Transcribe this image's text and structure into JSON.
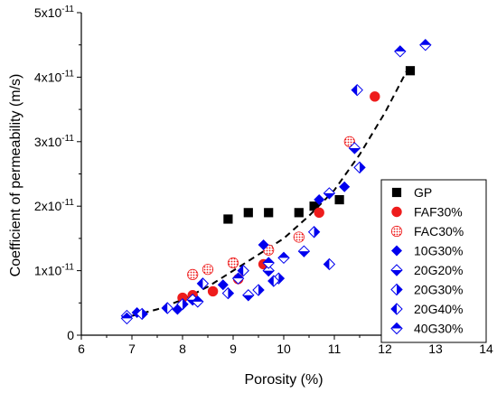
{
  "chart_data": {
    "type": "scatter",
    "xlabel": "Porosity (%)",
    "ylabel": "Coefficient of permeability (m/s)",
    "xlim": [
      6,
      14
    ],
    "ylim": [
      0,
      5e-11
    ],
    "x_ticks": [
      6,
      7,
      8,
      9,
      10,
      11,
      12,
      13,
      14
    ],
    "x_tick_labels": [
      "6",
      "7",
      "8",
      "9",
      "10",
      "11",
      "12",
      "13",
      "14"
    ],
    "y_ticks": [
      0,
      1e-11,
      2e-11,
      3e-11,
      4e-11,
      5e-11
    ],
    "y_tick_labels": [
      {
        "mantissa": "0",
        "exponent": ""
      },
      {
        "mantissa": "1x10",
        "exponent": "-11"
      },
      {
        "mantissa": "2x10",
        "exponent": "-11"
      },
      {
        "mantissa": "3x10",
        "exponent": "-11"
      },
      {
        "mantissa": "4x10",
        "exponent": "-11"
      },
      {
        "mantissa": "5x10",
        "exponent": "-11"
      }
    ],
    "legend_position": "lower-right",
    "series": [
      {
        "name": "GP",
        "marker": "square-filled",
        "color": "#000000",
        "points": [
          [
            8.9,
            1.8e-11
          ],
          [
            9.3,
            1.9e-11
          ],
          [
            9.7,
            1.9e-11
          ],
          [
            10.3,
            1.9e-11
          ],
          [
            10.6,
            2e-11
          ],
          [
            11.1,
            2.1e-11
          ],
          [
            12.5,
            4.1e-11
          ]
        ]
      },
      {
        "name": "FAF30%",
        "marker": "circle-filled",
        "color": "#ee1c1c",
        "points": [
          [
            8.0,
            5.8e-12
          ],
          [
            8.2,
            6.2e-12
          ],
          [
            8.6,
            6.8e-12
          ],
          [
            9.1,
            8.7e-12
          ],
          [
            9.6,
            1.1e-11
          ],
          [
            10.7,
            1.9e-11
          ],
          [
            11.8,
            3.7e-11
          ]
        ]
      },
      {
        "name": "FAC30%",
        "marker": "circle-dotted",
        "color": "#ee1c1c",
        "points": [
          [
            8.2,
            9.4e-12
          ],
          [
            8.5,
            1.02e-11
          ],
          [
            9.0,
            1.12e-11
          ],
          [
            9.7,
            1.32e-11
          ],
          [
            10.3,
            1.52e-11
          ],
          [
            11.3,
            3e-11
          ]
        ]
      },
      {
        "name": "10G30%",
        "marker": "diamond-filled",
        "color": "#0000ee",
        "points": [
          [
            7.1,
            3.5e-12
          ],
          [
            7.9,
            4e-12
          ],
          [
            8.8,
            7.8e-12
          ],
          [
            9.6,
            1.4e-11
          ],
          [
            10.7,
            2.1e-11
          ],
          [
            11.2,
            2.3e-11
          ]
        ]
      },
      {
        "name": "20G20%",
        "marker": "diamond-half-bottom",
        "color": "#0000ee",
        "points": [
          [
            6.9,
            3e-12
          ],
          [
            8.2,
            5.5e-12
          ],
          [
            9.3,
            6.2e-12
          ],
          [
            9.7,
            1e-11
          ],
          [
            10.4,
            1.3e-11
          ],
          [
            10.9,
            2.2e-11
          ],
          [
            11.4,
            2.9e-11
          ]
        ]
      },
      {
        "name": "20G30%",
        "marker": "diamond-half-right",
        "color": "#0000ee",
        "points": [
          [
            7.2,
            3.3e-12
          ],
          [
            8.0,
            4.8e-12
          ],
          [
            8.9,
            6.5e-12
          ],
          [
            9.5,
            7e-12
          ],
          [
            9.9,
            8.8e-12
          ],
          [
            10.6,
            1.6e-11
          ],
          [
            11.5,
            2.6e-11
          ]
        ]
      },
      {
        "name": "20G40%",
        "marker": "diamond-half-left",
        "color": "#0000ee",
        "points": [
          [
            7.7,
            4.2e-12
          ],
          [
            8.4,
            8e-12
          ],
          [
            9.2,
            1e-11
          ],
          [
            9.8,
            8.4e-12
          ],
          [
            10.9,
            1.1e-11
          ],
          [
            11.45,
            3.8e-11
          ]
        ]
      },
      {
        "name": "40G30%",
        "marker": "diamond-half-top",
        "color": "#0000ee",
        "points": [
          [
            6.9,
            2.6e-12
          ],
          [
            8.3,
            5.2e-12
          ],
          [
            9.1,
            8.8e-12
          ],
          [
            9.7,
            1.12e-11
          ],
          [
            10.0,
            1.2e-11
          ],
          [
            12.3,
            4.4e-11
          ],
          [
            12.8,
            4.5e-11
          ]
        ]
      }
    ],
    "trendline": {
      "style": "dashed",
      "color": "#000000",
      "points": [
        [
          7.0,
          3e-12
        ],
        [
          7.5,
          4e-12
        ],
        [
          8.0,
          5.5e-12
        ],
        [
          8.5,
          7.5e-12
        ],
        [
          9.0,
          1e-11
        ],
        [
          9.5,
          1.25e-11
        ],
        [
          10.0,
          1.5e-11
        ],
        [
          10.5,
          1.85e-11
        ],
        [
          11.0,
          2.25e-11
        ],
        [
          11.5,
          2.8e-11
        ],
        [
          12.0,
          3.45e-11
        ],
        [
          12.5,
          4.2e-11
        ]
      ]
    }
  }
}
